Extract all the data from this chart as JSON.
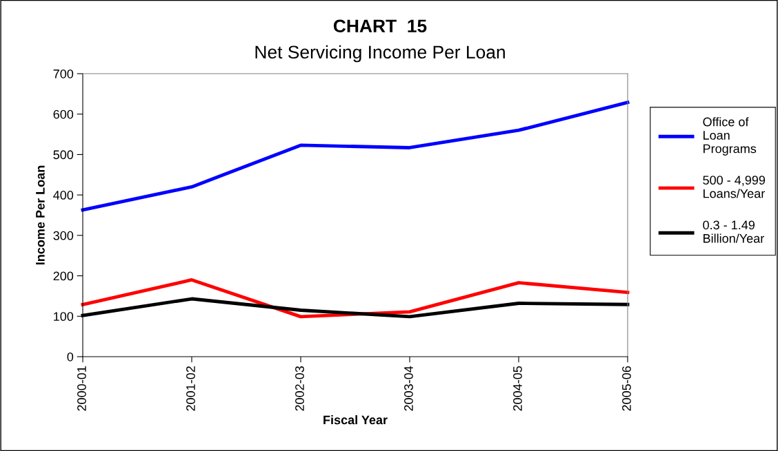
{
  "chart_data": {
    "type": "line",
    "title": "CHART  15",
    "subtitle": "Net Servicing Income Per Loan",
    "xlabel": "Fiscal Year",
    "ylabel": "Income Per Loan",
    "categories": [
      "2000-01",
      "2001-02",
      "2002-03",
      "2003-04",
      "2004-05",
      "2005-06"
    ],
    "series": [
      {
        "name": "Office of\nLoan\nPrograms",
        "color": "#0000ff",
        "values": [
          363,
          420,
          523,
          517,
          560,
          629
        ]
      },
      {
        "name": "500 - 4,999\nLoans/Year",
        "color": "#ff0000",
        "values": [
          129,
          190,
          99,
          111,
          183,
          159
        ]
      },
      {
        "name": "0.3 - 1.49\nBillion/Year",
        "color": "#000000",
        "values": [
          102,
          143,
          115,
          99,
          132,
          129
        ]
      }
    ],
    "ylim": [
      0,
      700
    ],
    "yticks": [
      0,
      100,
      200,
      300,
      400,
      500,
      600,
      700
    ],
    "grid": false,
    "legend": "right",
    "marker": "none",
    "line_style": "solid"
  }
}
